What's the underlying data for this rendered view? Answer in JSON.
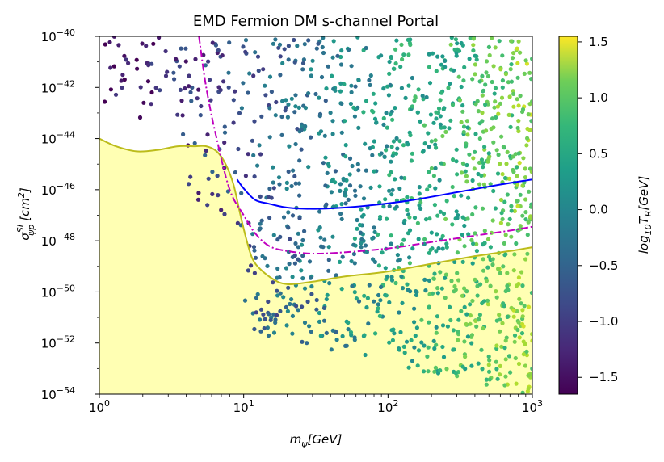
{
  "chart_data": {
    "type": "scatter",
    "title": "EMD Fermion DM s-channel Portal",
    "xscale": "log",
    "yscale": "log",
    "xlim": [
      1,
      1000
    ],
    "ylim": [
      1e-54,
      1e-40
    ],
    "xlabel": {
      "base": "m",
      "sub": "ψ",
      "unit": "[GeV]"
    },
    "ylabel": {
      "base": "σ",
      "sup": "SI",
      "sub": "ψp",
      "unit": "[cm",
      "unit_sup": "2",
      "unit_end": "]"
    },
    "x_ticks": [
      {
        "value": 1,
        "base": "10",
        "exp": "0"
      },
      {
        "value": 10,
        "base": "10",
        "exp": "1"
      },
      {
        "value": 100,
        "base": "10",
        "exp": "2"
      },
      {
        "value": 1000,
        "base": "10",
        "exp": "3"
      }
    ],
    "y_ticks": [
      {
        "value": -54,
        "base": "10",
        "exp": "−54"
      },
      {
        "value": -52,
        "base": "10",
        "exp": "−52"
      },
      {
        "value": -50,
        "base": "10",
        "exp": "−50"
      },
      {
        "value": -48,
        "base": "10",
        "exp": "−48"
      },
      {
        "value": -46,
        "base": "10",
        "exp": "−46"
      },
      {
        "value": -44,
        "base": "10",
        "exp": "−44"
      },
      {
        "value": -42,
        "base": "10",
        "exp": "−42"
      },
      {
        "value": -40,
        "base": "10",
        "exp": "−40"
      }
    ],
    "colorbar": {
      "label": "log₁₀T_R[GeV]",
      "label_base": "log",
      "label_sub": "10",
      "label_var": "T",
      "label_var_sub": "R",
      "label_unit": "[GeV]",
      "range": [
        -1.65,
        1.55
      ],
      "ticks": [
        "−1.5",
        "−1.0",
        "−0.5",
        "0.0",
        "0.5",
        "1.0",
        "1.5"
      ],
      "tick_values": [
        -1.5,
        -1.0,
        -0.5,
        0.0,
        0.5,
        1.0,
        1.5
      ],
      "colormap": "viridis"
    },
    "series": [
      {
        "name": "excluded region (direct detection bound + neutrino floor)",
        "kind": "filled_area",
        "color": "#ffffb3",
        "line_color": "#bcbc1b",
        "x": [
          1,
          1.3,
          1.8,
          2.5,
          3.5,
          4.5,
          5.5,
          6.5,
          7.5,
          8.5,
          9.5,
          10.5,
          11.5,
          13,
          16,
          20,
          30,
          50,
          100,
          200,
          400,
          700,
          1000
        ],
        "log10_y": [
          -44.0,
          -44.3,
          -44.5,
          -44.45,
          -44.3,
          -44.3,
          -44.3,
          -44.5,
          -45.0,
          -45.8,
          -47.0,
          -48.0,
          -48.7,
          -49.1,
          -49.5,
          -49.7,
          -49.6,
          -49.4,
          -49.2,
          -48.9,
          -48.6,
          -48.4,
          -48.25
        ]
      },
      {
        "name": "blue limit curve",
        "kind": "line",
        "color": "#0000ff",
        "style": "solid",
        "x": [
          9,
          10,
          12,
          15,
          20,
          30,
          50,
          80,
          150,
          300,
          600,
          1000
        ],
        "log10_y": [
          -45.6,
          -45.95,
          -46.4,
          -46.55,
          -46.7,
          -46.75,
          -46.7,
          -46.6,
          -46.4,
          -46.1,
          -45.8,
          -45.6
        ]
      },
      {
        "name": "magenta dash-dot curve",
        "kind": "line",
        "color": "#bf00bf",
        "style": "dashdot",
        "x": [
          4.9,
          5.5,
          6.5,
          8,
          10,
          12,
          15,
          20,
          30,
          50,
          100,
          200,
          400,
          700,
          1000
        ],
        "log10_y": [
          -40.0,
          -42.0,
          -44.0,
          -46.0,
          -47.0,
          -47.7,
          -48.2,
          -48.4,
          -48.5,
          -48.45,
          -48.3,
          -48.05,
          -47.8,
          -47.6,
          -47.45
        ]
      },
      {
        "name": "scan points",
        "kind": "scatter",
        "description": "random parameter scan colored by log10 T_R",
        "points_sample": [
          [
            1.3,
            -40.9,
            -1.6
          ],
          [
            1.5,
            -42.3,
            -1.5
          ],
          [
            2.0,
            -41.4,
            -1.4
          ],
          [
            2.5,
            -43.2,
            -1.35
          ],
          [
            3.2,
            -42.1,
            -1.3
          ],
          [
            3.8,
            -44.5,
            -1.25
          ],
          [
            4.5,
            -46.0,
            -1.1
          ],
          [
            5.5,
            -45.3,
            -1.0
          ],
          [
            7.0,
            -44.0,
            -0.9
          ],
          [
            9.0,
            -42.5,
            -0.8
          ],
          [
            12,
            -45.8,
            -0.6
          ],
          [
            15,
            -44.2,
            -0.5
          ],
          [
            20,
            -47.5,
            -0.4
          ],
          [
            25,
            -50.0,
            -0.35
          ],
          [
            35,
            -46.8,
            -0.2
          ],
          [
            50,
            -49.5,
            -0.1
          ],
          [
            70,
            -43.5,
            0.0
          ],
          [
            100,
            -51.0,
            0.2
          ],
          [
            150,
            -45.5,
            0.4
          ],
          [
            200,
            -52.5,
            0.5
          ],
          [
            300,
            -42.0,
            0.8
          ],
          [
            400,
            -48.0,
            0.7
          ],
          [
            600,
            -44.2,
            1.0
          ],
          [
            800,
            -50.5,
            0.9
          ],
          [
            950,
            -41.5,
            1.5
          ]
        ]
      }
    ]
  }
}
